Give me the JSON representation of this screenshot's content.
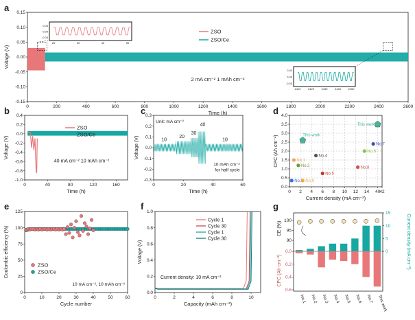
{
  "colors": {
    "zso": "#e8777a",
    "zsoce": "#17a8a3",
    "grid": "#999999",
    "axis": "#222222",
    "star": "#48b59b",
    "circle": "#f4e3b1"
  },
  "chart_data": [
    {
      "id": "a",
      "label": "a",
      "type": "line",
      "title": "",
      "xlabel": "Time (h)",
      "ylabel": "Voltage (V)",
      "xlim": [
        0,
        2600
      ],
      "ylim": [
        -0.15,
        0.15
      ],
      "xticks": [
        0,
        200,
        400,
        600,
        800,
        1000,
        1200,
        1400,
        1600,
        1800,
        2000,
        2200,
        2400,
        2600
      ],
      "yticks": [
        -0.15,
        -0.1,
        -0.05,
        0.0,
        0.05,
        0.1,
        0.15
      ],
      "series": [
        {
          "name": "ZSO",
          "x_range": [
            0,
            120
          ],
          "amplitude": 0.03
        },
        {
          "name": "ZSO/Ce",
          "x_range": [
            120,
            2600
          ],
          "amplitude": 0.015
        }
      ],
      "annotation": "2 mA cm⁻² 1 mAh cm⁻²",
      "inset_left": {
        "xticks": [
          "20",
          "30",
          "40",
          "50"
        ],
        "yticks": [
          "0.03",
          "0.00",
          "-0.03"
        ]
      },
      "inset_right": {
        "xticks": [
          "2410",
          "2420",
          "2430",
          "2440",
          "2450"
        ],
        "yticks": [
          "0.03",
          "0.00",
          "-0.03"
        ]
      }
    },
    {
      "id": "b",
      "label": "b",
      "type": "line",
      "xlabel": "Time (h)",
      "ylabel": "Voltage (V)",
      "xlim": [
        0,
        180
      ],
      "ylim": [
        -1.0,
        0.4
      ],
      "xticks": [
        0,
        40,
        80,
        120,
        160
      ],
      "yticks": [
        0.4,
        0.2,
        0.0,
        -0.2,
        -0.4,
        -0.6,
        -0.8,
        -1.0
      ],
      "series": [
        {
          "name": "ZSO",
          "note": "fails near 20 h, drops to -0.85 V"
        },
        {
          "name": "ZSO/Ce",
          "amplitude": 0.05
        }
      ],
      "annotation": "40 mA cm⁻² 10 mAh cm⁻²"
    },
    {
      "id": "c",
      "label": "c",
      "type": "line",
      "xlabel": "Time (h)",
      "ylabel": "Voltage (V)",
      "xlim": [
        0,
        60
      ],
      "ylim": [
        -0.3,
        0.3
      ],
      "xticks": [
        0,
        20,
        40,
        60
      ],
      "yticks": [
        0.3,
        0.2,
        0.1,
        0.0,
        -0.1,
        -0.2,
        -0.3
      ],
      "series": [
        {
          "name": "ZSO/Ce",
          "segments": [
            {
              "x": [
                0,
                15
              ],
              "current": 10
            },
            {
              "x": [
                15,
                25
              ],
              "current": 20
            },
            {
              "x": [
                25,
                30
              ],
              "current": 30
            },
            {
              "x": [
                30,
                35
              ],
              "current": 40
            },
            {
              "x": [
                35,
                60
              ],
              "current": 10
            }
          ]
        }
      ],
      "current_labels": [
        "10",
        "20",
        "30",
        "40",
        "10"
      ],
      "unit_label": "Unit: mA cm⁻²",
      "annotation_line1": "10 mAh cm⁻²",
      "annotation_line2": "for half cycle"
    },
    {
      "id": "d",
      "label": "d",
      "type": "scatter",
      "xlabel": "Current density (mA cm⁻²)",
      "ylabel": "CPC (Ah cm⁻²)",
      "xlim": [
        0,
        42
      ],
      "ylim": [
        0,
        4.0
      ],
      "xticks": [
        0,
        5,
        10,
        15,
        20,
        25,
        30,
        35,
        40,
        42
      ],
      "xtick_labels": [
        "0",
        "2",
        "4",
        "6",
        "8",
        "10",
        "12",
        "14",
        "40",
        "42"
      ],
      "yticks": [
        0,
        0.5,
        1.0,
        1.5,
        2.0,
        2.5,
        3.0,
        3.5,
        4.0
      ],
      "points": [
        {
          "label": "No.1",
          "x": 2,
          "y": 1.5,
          "color": "#f4a460"
        },
        {
          "label": "No.2",
          "x": 4,
          "y": 1.2,
          "color": "#6a9d3a"
        },
        {
          "label": "No.3",
          "x": 1,
          "y": 0.35,
          "color": "#3a6fd8"
        },
        {
          "label": "No.4",
          "x": 12,
          "y": 1.75,
          "color": "#555555"
        },
        {
          "label": "No.5",
          "x": 15,
          "y": 0.75,
          "color": "#c0392b"
        },
        {
          "label": "No.6",
          "x": 34,
          "y": 2.0,
          "color": "#8bc34a"
        },
        {
          "label": "No.7",
          "x": 38,
          "y": 2.4,
          "color": "#3f51b5"
        },
        {
          "label": "No.8",
          "x": 31,
          "y": 1.1,
          "color": "#d05050"
        },
        {
          "label": "No.9",
          "x": 6,
          "y": 0.35,
          "color": "#e8b04a"
        },
        {
          "label": "This work",
          "x": 6,
          "y": 2.6,
          "color": "#48b59b"
        },
        {
          "label": "This work",
          "x": 40,
          "y": 3.5,
          "color": "#48b59b"
        }
      ]
    },
    {
      "id": "e",
      "label": "e",
      "type": "scatter",
      "xlabel": "Cycle number",
      "ylabel": "Coulombic efficiency (%)",
      "xlim": [
        0,
        60
      ],
      "ylim": [
        0,
        125
      ],
      "xticks": [
        0,
        10,
        20,
        30,
        40,
        50,
        60
      ],
      "yticks": [
        0,
        25,
        50,
        75,
        100,
        125
      ],
      "series": [
        {
          "name": "ZSO",
          "x": [
            1,
            2,
            3,
            4,
            5,
            6,
            7,
            8,
            9,
            10,
            11,
            12,
            13,
            14,
            15,
            16,
            17,
            18,
            19,
            20,
            21,
            22,
            23,
            24,
            25,
            26,
            27,
            28,
            29,
            30,
            31,
            32,
            33,
            34,
            35,
            36,
            37,
            38,
            39,
            40
          ],
          "y": [
            97,
            98,
            97,
            98,
            98,
            97,
            98,
            97,
            98,
            97,
            98,
            98,
            97,
            98,
            97,
            98,
            98,
            97,
            98,
            97,
            98,
            97,
            98,
            90,
            101,
            92,
            105,
            85,
            100,
            110,
            93,
            88,
            118,
            95,
            107,
            102,
            90,
            99,
            112,
            96
          ]
        },
        {
          "name": "ZSO/Ce",
          "x": [
            1,
            2,
            3,
            4,
            5,
            6,
            7,
            8,
            9,
            10,
            11,
            12,
            13,
            14,
            15,
            16,
            17,
            18,
            19,
            20,
            21,
            22,
            23,
            24,
            25,
            26,
            27,
            28,
            29,
            30,
            31,
            32,
            33,
            34,
            35,
            36,
            37,
            38,
            39,
            40,
            41,
            42,
            43,
            44,
            45,
            46,
            47,
            48,
            49,
            50,
            51,
            52,
            53,
            54,
            55,
            56,
            57,
            58,
            59,
            60
          ],
          "y": [
            96,
            97,
            98,
            98,
            98,
            98,
            98,
            98,
            98,
            98,
            98,
            98,
            98,
            98,
            98,
            98,
            98,
            98,
            98,
            98,
            98,
            98,
            98,
            98,
            98,
            98,
            98,
            98,
            98,
            98,
            98,
            98,
            98,
            98,
            98,
            98,
            98,
            98,
            98,
            98,
            98,
            98,
            98,
            98,
            98,
            98,
            98,
            98,
            98,
            98,
            98,
            98,
            98,
            98,
            98,
            98,
            98,
            98,
            98,
            98
          ]
        }
      ],
      "annotation": "10 mA cm⁻², 10 mAh cm⁻²"
    },
    {
      "id": "f",
      "label": "f",
      "type": "line",
      "xlabel": "Capacity (mAh cm⁻²)",
      "ylabel": "Voltage (V)",
      "xlim": [
        0,
        11
      ],
      "ylim": [
        0,
        1.0
      ],
      "xticks": [
        0,
        2,
        4,
        6,
        8,
        10
      ],
      "yticks": [
        0,
        0.2,
        0.4,
        0.6,
        0.8,
        1.0
      ],
      "series": [
        {
          "name": "Cycle 1",
          "group": "ZSO",
          "color": "#e8777a",
          "plateau": 0.05,
          "end": 9.6
        },
        {
          "name": "Cycle 30",
          "group": "ZSO",
          "color": "#c0504d",
          "plateau": 0.045,
          "end": 9.9
        },
        {
          "name": "Cycle 1",
          "group": "ZSO/Ce",
          "color": "#17a8a3",
          "plateau": 0.045,
          "end": 10.0
        },
        {
          "name": "Cycle 30",
          "group": "ZSO/Ce",
          "color": "#0e7d7a",
          "plateau": 0.04,
          "end": 10.1
        }
      ],
      "annotation": "Current density: 10 mA cm⁻²"
    },
    {
      "id": "g",
      "label": "g",
      "type": "bar",
      "categories": [
        "No.1",
        "No.2",
        "No.3",
        "No.4",
        "No.5",
        "No.6",
        "No.7",
        "This work"
      ],
      "ylabel_left_top": "CE (%)",
      "ylabel_left_bottom": "CPC (Ah cm⁻²)",
      "ylabel_right": "Current density (mA cm⁻²)",
      "ce_values": [
        99.0,
        99.5,
        99.5,
        99.5,
        99.5,
        99.5,
        99.5,
        99.8
      ],
      "ce_ticks": [
        90,
        95,
        100
      ],
      "cpc_values": [
        0.03,
        0.05,
        0.25,
        0.13,
        0.15,
        0.2,
        0.4,
        0.55
      ],
      "cpc_ticks": [
        0,
        0.2,
        0.4,
        0.6
      ],
      "current_values": [
        0.5,
        1,
        2,
        3,
        3,
        5,
        10,
        10
      ],
      "current_ticks": [
        0,
        5,
        10,
        15
      ]
    }
  ],
  "legend": {
    "zso": "ZSO",
    "zsoce": "ZSO/Ce"
  },
  "panel_labels": {
    "a": "a",
    "b": "b",
    "c": "c",
    "d": "d",
    "e": "e",
    "f": "f",
    "g": "g"
  }
}
